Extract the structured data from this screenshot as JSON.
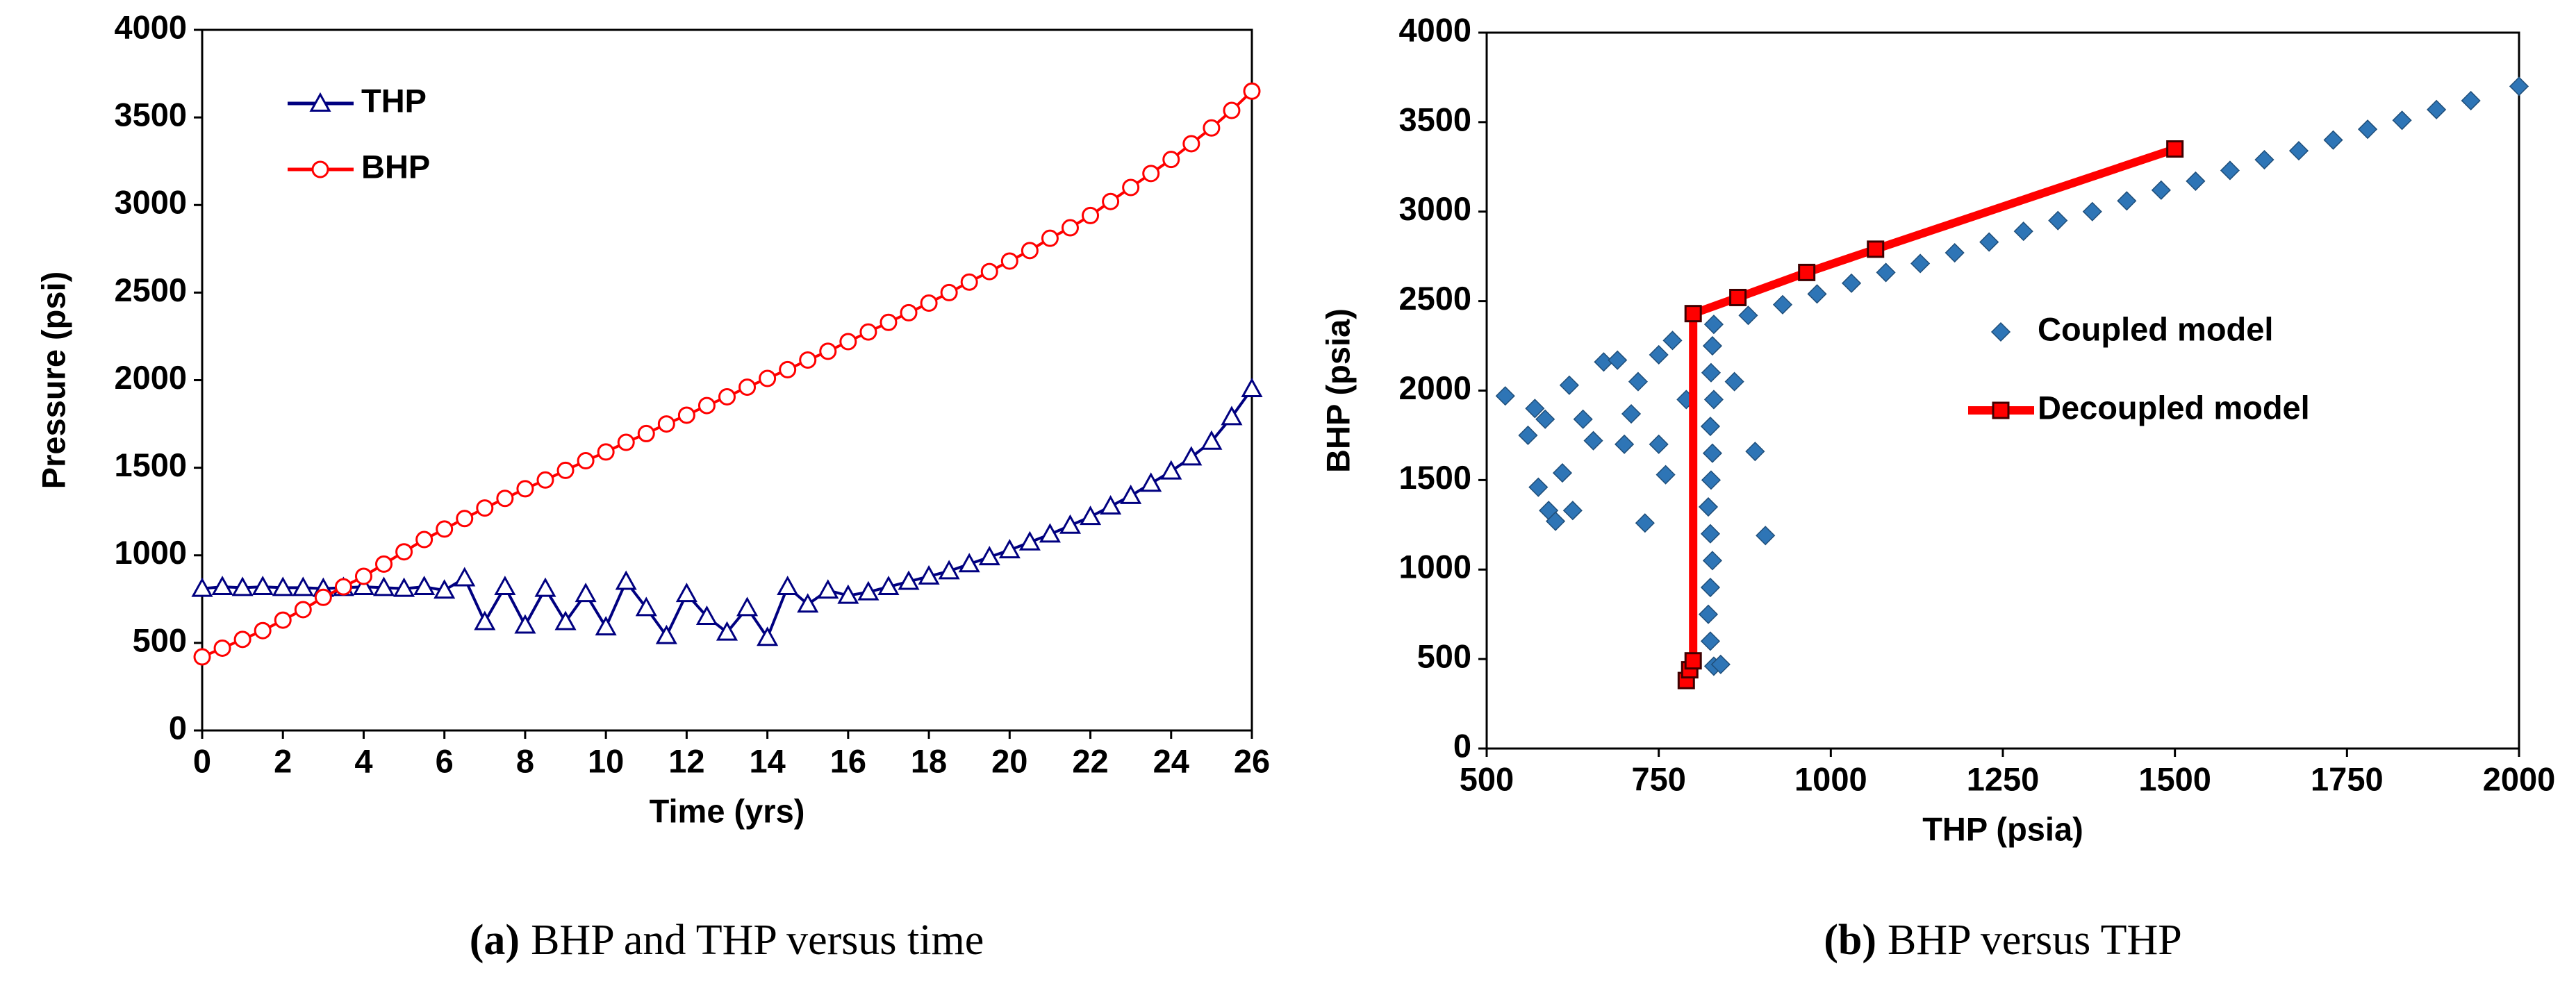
{
  "charts": [
    {
      "type": "line",
      "caption_label": "(a)",
      "caption": "BHP and THP versus time",
      "xlabel": "Time (yrs)",
      "ylabel": "Pressure (psi)",
      "xlim": [
        0,
        26
      ],
      "xticks": [
        0,
        2,
        4,
        6,
        8,
        10,
        12,
        14,
        16,
        18,
        20,
        22,
        24,
        26
      ],
      "ylim": [
        0,
        4000
      ],
      "yticks": [
        0,
        500,
        1000,
        1500,
        2000,
        2500,
        3000,
        3500,
        4000
      ],
      "legend": "upper left",
      "x": [
        0,
        0.5,
        1,
        1.5,
        2,
        2.5,
        3,
        3.5,
        4,
        4.5,
        5,
        5.5,
        6,
        6.5,
        7,
        7.5,
        8,
        8.5,
        9,
        9.5,
        10,
        10.5,
        11,
        11.5,
        12,
        12.5,
        13,
        13.5,
        14,
        14.5,
        15,
        15.5,
        16,
        16.5,
        17,
        17.5,
        18,
        18.5,
        19,
        19.5,
        20,
        20.5,
        21,
        21.5,
        22,
        22.5,
        23,
        23.5,
        24,
        24.5,
        25,
        25.5,
        26
      ],
      "series": [
        {
          "name": "THP",
          "color": "#000080",
          "marker": "triangle",
          "line": true,
          "values": [
            810,
            820,
            815,
            820,
            815,
            815,
            810,
            815,
            820,
            815,
            810,
            820,
            800,
            870,
            620,
            820,
            600,
            810,
            620,
            780,
            590,
            850,
            700,
            540,
            780,
            650,
            560,
            700,
            530,
            820,
            720,
            800,
            770,
            790,
            820,
            850,
            880,
            910,
            950,
            990,
            1030,
            1075,
            1120,
            1170,
            1220,
            1280,
            1340,
            1410,
            1480,
            1560,
            1650,
            1790,
            1950
          ]
        },
        {
          "name": "BHP",
          "color": "#ff0000",
          "marker": "circle",
          "line": true,
          "values": [
            420,
            470,
            520,
            570,
            630,
            690,
            760,
            820,
            880,
            950,
            1020,
            1090,
            1150,
            1210,
            1270,
            1325,
            1380,
            1430,
            1485,
            1540,
            1590,
            1645,
            1695,
            1750,
            1800,
            1855,
            1905,
            1960,
            2010,
            2060,
            2115,
            2165,
            2220,
            2275,
            2330,
            2385,
            2440,
            2500,
            2560,
            2620,
            2680,
            2740,
            2810,
            2870,
            2940,
            3020,
            3100,
            3180,
            3260,
            3350,
            3440,
            3540,
            3650
          ]
        }
      ]
    },
    {
      "type": "scatter",
      "caption_label": "(b)",
      "caption": "BHP versus THP",
      "xlabel": "THP (psia)",
      "ylabel": "BHP (psia)",
      "xlim": [
        500,
        2000
      ],
      "xticks": [
        500,
        750,
        1000,
        1250,
        1500,
        1750,
        2000
      ],
      "ylim": [
        0,
        4000
      ],
      "yticks": [
        0,
        500,
        1000,
        1500,
        2000,
        2500,
        3000,
        3500,
        4000
      ],
      "legend": "center right",
      "series": [
        {
          "name": "Coupled model",
          "color": "#2e75b6",
          "marker": "diamond",
          "line": false,
          "x": [
            830,
            880,
            930,
            980,
            1030,
            1080,
            1130,
            1180,
            1230,
            1280,
            1330,
            1380,
            1430,
            1480,
            1530,
            1580,
            1630,
            1680,
            1730,
            1780,
            1830,
            1880,
            1930,
            2000,
            830,
            825,
            822,
            825,
            828,
            825,
            822,
            826,
            828,
            825,
            830,
            826,
            828,
            840,
            527,
            560,
            570,
            575,
            585,
            590,
            600,
            610,
            620,
            625,
            640,
            655,
            670,
            690,
            700,
            710,
            720,
            730,
            750,
            760,
            770,
            790,
            890,
            905,
            860,
            750
          ],
          "values": [
            2370,
            2420,
            2480,
            2540,
            2600,
            2660,
            2710,
            2770,
            2830,
            2890,
            2950,
            3000,
            3060,
            3120,
            3170,
            3230,
            3290,
            3340,
            3400,
            3460,
            3510,
            3570,
            3620,
            3700,
            460,
            600,
            750,
            900,
            1050,
            1200,
            1350,
            1500,
            1650,
            1800,
            1950,
            2100,
            2250,
            470,
            1970,
            1750,
            1900,
            1460,
            1840,
            1330,
            1270,
            1540,
            2030,
            1330,
            1840,
            1720,
            2160,
            2170,
            1700,
            1870,
            2050,
            1260,
            2200,
            1530,
            2280,
            1950,
            1660,
            1190,
            2050,
            1700
          ]
        },
        {
          "name": "Decoupled model",
          "color": "#ff0000",
          "marker": "square",
          "line": true,
          "x": [
            790,
            795,
            800,
            800,
            865,
            965,
            1065,
            1500
          ],
          "values": [
            380,
            440,
            490,
            2430,
            2520,
            2660,
            2790,
            3350
          ]
        }
      ]
    }
  ]
}
